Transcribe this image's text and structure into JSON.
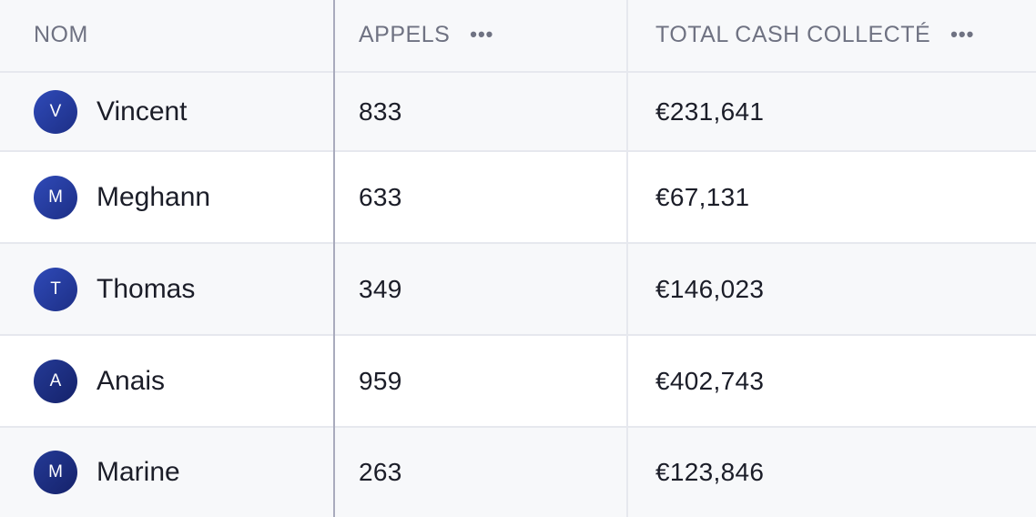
{
  "header": {
    "name_label": "NOM",
    "calls_label": "APPELS",
    "cash_label": "TOTAL CASH COLLECTÉ",
    "more_glyph": "•••"
  },
  "rows": [
    {
      "initial": "V",
      "name": "Vincent",
      "calls": "833",
      "cash": "€231,641"
    },
    {
      "initial": "M",
      "name": "Meghann",
      "calls": "633",
      "cash": "€67,131"
    },
    {
      "initial": "T",
      "name": "Thomas",
      "calls": "349",
      "cash": "€146,023"
    },
    {
      "initial": "A",
      "name": "Anais",
      "calls": "959",
      "cash": "€402,743"
    },
    {
      "initial": "M",
      "name": "Marine",
      "calls": "263",
      "cash": "€123,846"
    }
  ],
  "colors": {
    "avatar": "#2f4ab8",
    "header_bg": "#f7f8fa",
    "text": "#1b1d28",
    "muted": "#6f7282"
  }
}
